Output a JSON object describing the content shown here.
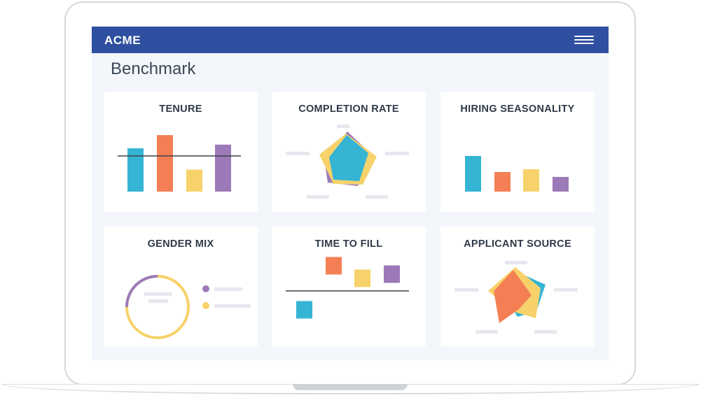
{
  "colors": {
    "brand_bar": "#2f4fa0",
    "blue": "#36b4d3",
    "orange": "#f47f55",
    "yellow": "#f7d26a",
    "purple": "#9c7ab8",
    "placeholder": "#e6e8ee",
    "line": "#3c4048"
  },
  "header": {
    "brand": "ACME",
    "menu_icon": "hamburger-menu-icon"
  },
  "page": {
    "title": "Benchmark"
  },
  "cards": {
    "tenure": {
      "title": "TENURE",
      "bars": [
        0.59,
        0.77,
        0.3,
        0.64
      ]
    },
    "completion_rate": {
      "title": "COMPLETION RATE"
    },
    "hiring_seasonality": {
      "title": "HIRING SEASONALITY",
      "bars": [
        0.51,
        0.28,
        0.32,
        0.21
      ]
    },
    "gender_mix": {
      "title": "GENDER MIX",
      "ring_purple_fraction": 0.25
    },
    "time_to_fill": {
      "title": "TIME TO FILL",
      "offsets": [
        -0.45,
        0.6,
        0.3,
        0.4
      ]
    },
    "applicant_source": {
      "title": "APPLICANT SOURCE"
    }
  }
}
